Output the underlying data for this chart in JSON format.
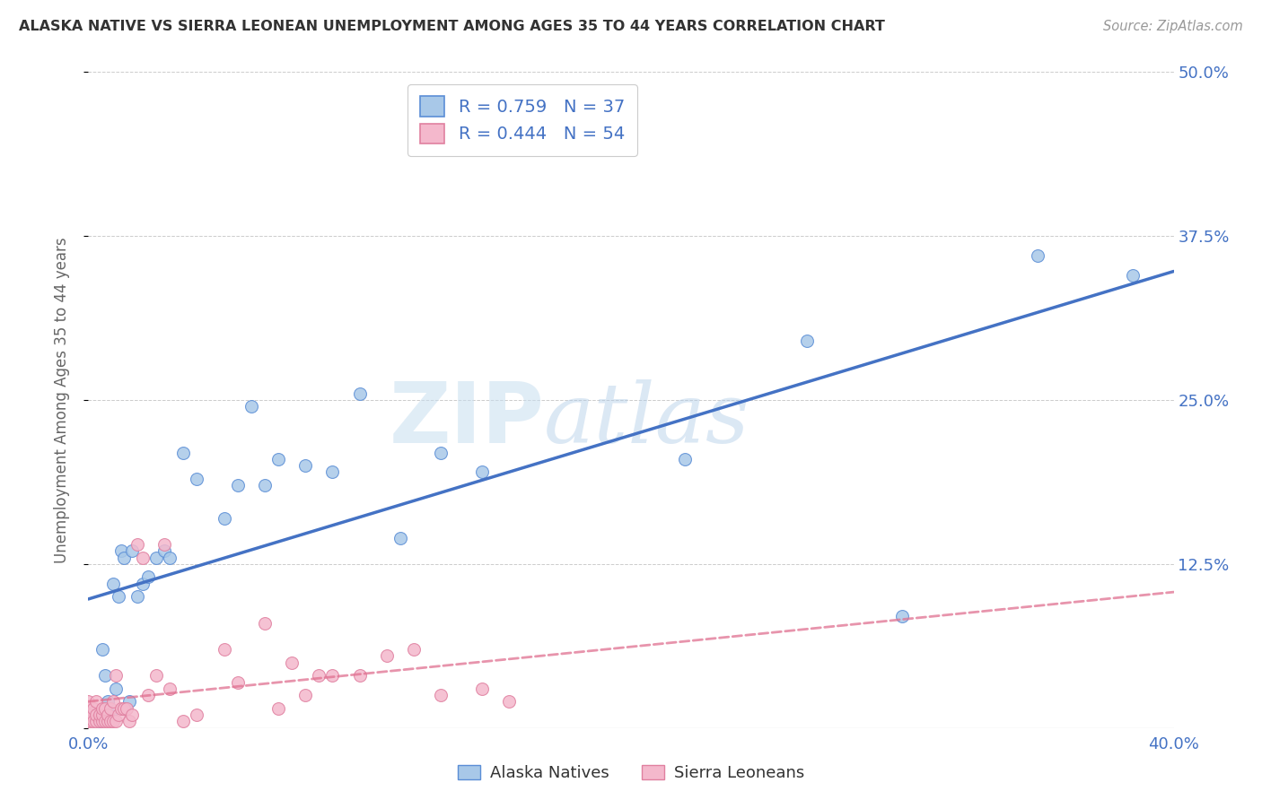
{
  "title": "ALASKA NATIVE VS SIERRA LEONEAN UNEMPLOYMENT AMONG AGES 35 TO 44 YEARS CORRELATION CHART",
  "source": "Source: ZipAtlas.com",
  "ylabel": "Unemployment Among Ages 35 to 44 years",
  "xlim": [
    0.0,
    0.4
  ],
  "ylim": [
    0.0,
    0.5
  ],
  "alaska_color": "#a8c8e8",
  "alaska_edge_color": "#5b8ed6",
  "alaska_line_color": "#4472c4",
  "sierra_color": "#f4b8cc",
  "sierra_edge_color": "#e080a0",
  "sierra_line_color": "#e07090",
  "alaska_R": 0.759,
  "alaska_N": 37,
  "sierra_R": 0.444,
  "sierra_N": 54,
  "legend_label_alaska": "Alaska Natives",
  "legend_label_sierra": "Sierra Leoneans",
  "background_color": "#ffffff",
  "alaska_scatter_x": [
    0.002,
    0.004,
    0.005,
    0.006,
    0.007,
    0.008,
    0.009,
    0.01,
    0.011,
    0.012,
    0.013,
    0.015,
    0.016,
    0.018,
    0.02,
    0.022,
    0.025,
    0.028,
    0.03,
    0.035,
    0.04,
    0.05,
    0.055,
    0.06,
    0.065,
    0.07,
    0.08,
    0.09,
    0.1,
    0.115,
    0.13,
    0.145,
    0.22,
    0.265,
    0.3,
    0.35,
    0.385
  ],
  "alaska_scatter_y": [
    0.01,
    0.005,
    0.06,
    0.04,
    0.02,
    0.01,
    0.11,
    0.03,
    0.1,
    0.135,
    0.13,
    0.02,
    0.135,
    0.1,
    0.11,
    0.115,
    0.13,
    0.135,
    0.13,
    0.21,
    0.19,
    0.16,
    0.185,
    0.245,
    0.185,
    0.205,
    0.2,
    0.195,
    0.255,
    0.145,
    0.21,
    0.195,
    0.205,
    0.295,
    0.085,
    0.36,
    0.345
  ],
  "sierra_scatter_x": [
    0.0,
    0.0,
    0.0,
    0.0,
    0.001,
    0.001,
    0.002,
    0.002,
    0.003,
    0.003,
    0.003,
    0.004,
    0.004,
    0.005,
    0.005,
    0.005,
    0.006,
    0.006,
    0.007,
    0.007,
    0.008,
    0.008,
    0.009,
    0.009,
    0.01,
    0.01,
    0.011,
    0.012,
    0.013,
    0.014,
    0.015,
    0.016,
    0.018,
    0.02,
    0.022,
    0.025,
    0.028,
    0.03,
    0.035,
    0.04,
    0.05,
    0.055,
    0.065,
    0.07,
    0.075,
    0.08,
    0.085,
    0.09,
    0.1,
    0.11,
    0.12,
    0.13,
    0.145,
    0.155
  ],
  "sierra_scatter_y": [
    0.005,
    0.01,
    0.015,
    0.02,
    0.005,
    0.01,
    0.005,
    0.015,
    0.005,
    0.01,
    0.02,
    0.005,
    0.01,
    0.005,
    0.01,
    0.015,
    0.005,
    0.015,
    0.005,
    0.01,
    0.005,
    0.015,
    0.005,
    0.02,
    0.005,
    0.04,
    0.01,
    0.015,
    0.015,
    0.015,
    0.005,
    0.01,
    0.14,
    0.13,
    0.025,
    0.04,
    0.14,
    0.03,
    0.005,
    0.01,
    0.06,
    0.035,
    0.08,
    0.015,
    0.05,
    0.025,
    0.04,
    0.04,
    0.04,
    0.055,
    0.06,
    0.025,
    0.03,
    0.02
  ]
}
